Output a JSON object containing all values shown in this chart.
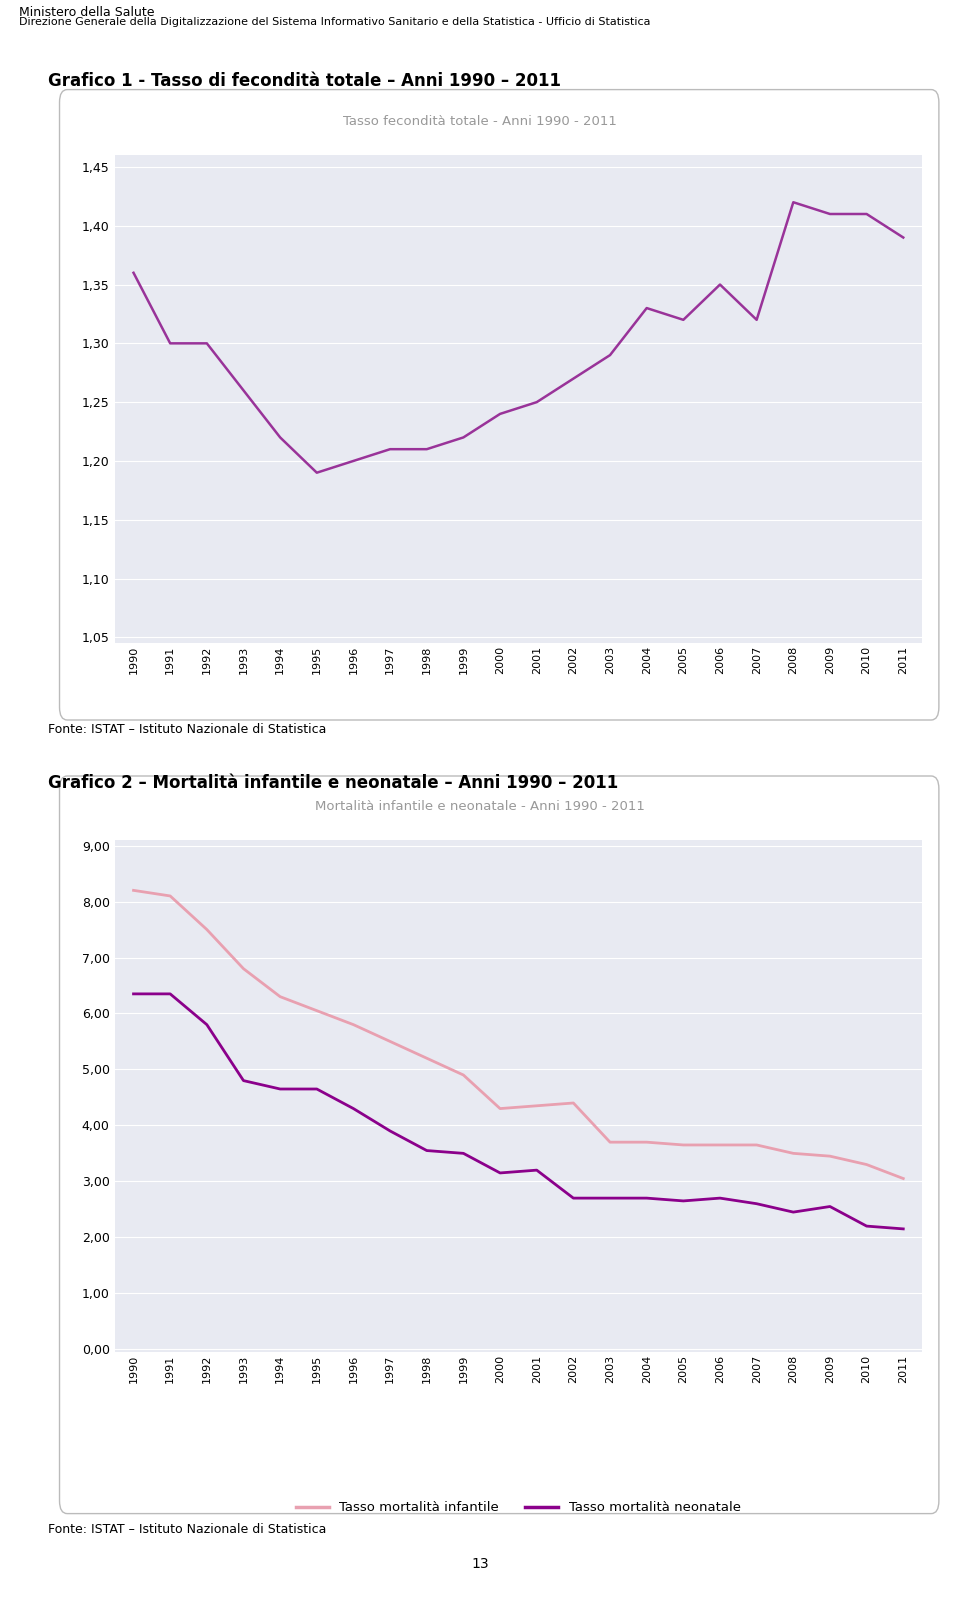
{
  "header_line1": "Ministero della Salute",
  "header_line2": "Direzione Generale della Digitalizzazione del Sistema Informativo Sanitario e della Statistica - Ufficio di Statistica",
  "chart1_title": "Grafico 1 - Tasso di fecondità totale – Anni 1990 – 2011",
  "chart1_legend": "Tasso fecondità totale - Anni 1990 - 2011",
  "chart2_title": "Grafico 2 – Mortalità infantile e neonatale – Anni 1990 – 2011",
  "chart2_legend": "Mortalità infantile e neonatale - Anni 1990 - 2011",
  "fonte": "Fonte: ISTAT – Istituto Nazionale di Statistica",
  "page_number": "13",
  "years": [
    1990,
    1991,
    1992,
    1993,
    1994,
    1995,
    1996,
    1997,
    1998,
    1999,
    2000,
    2001,
    2002,
    2003,
    2004,
    2005,
    2006,
    2007,
    2008,
    2009,
    2010,
    2011
  ],
  "fecondita": [
    1.36,
    1.3,
    1.3,
    1.26,
    1.22,
    1.19,
    1.2,
    1.21,
    1.21,
    1.22,
    1.24,
    1.25,
    1.27,
    1.29,
    1.33,
    1.32,
    1.35,
    1.32,
    1.42,
    1.41,
    1.41,
    1.39
  ],
  "mortalita_infantile": [
    8.2,
    8.1,
    7.5,
    6.8,
    6.3,
    6.05,
    5.8,
    5.5,
    5.2,
    4.9,
    4.3,
    4.35,
    4.4,
    3.7,
    3.7,
    3.65,
    3.65,
    3.65,
    3.5,
    3.45,
    3.3,
    3.05
  ],
  "mortalita_neonatale": [
    6.35,
    6.35,
    5.8,
    4.8,
    4.65,
    4.65,
    4.3,
    3.9,
    3.55,
    3.5,
    3.15,
    3.2,
    2.7,
    2.7,
    2.7,
    2.65,
    2.7,
    2.6,
    2.45,
    2.55,
    2.2,
    2.15
  ],
  "fecondita_color": "#993399",
  "infantile_color": "#e8a0b0",
  "neonatale_color": "#8B008B",
  "chart_bg": "#e8eaf2",
  "chart_border": "#bbbbbb",
  "ylim1_min": 1.05,
  "ylim1_max": 1.45,
  "ylim1_step": 0.05,
  "ylim2_min": 0.0,
  "ylim2_max": 9.0,
  "ylim2_step": 1.0,
  "legend_infantile": "Tasso mortalità infantile",
  "legend_neonatale": "Tasso mortalità neonatale"
}
